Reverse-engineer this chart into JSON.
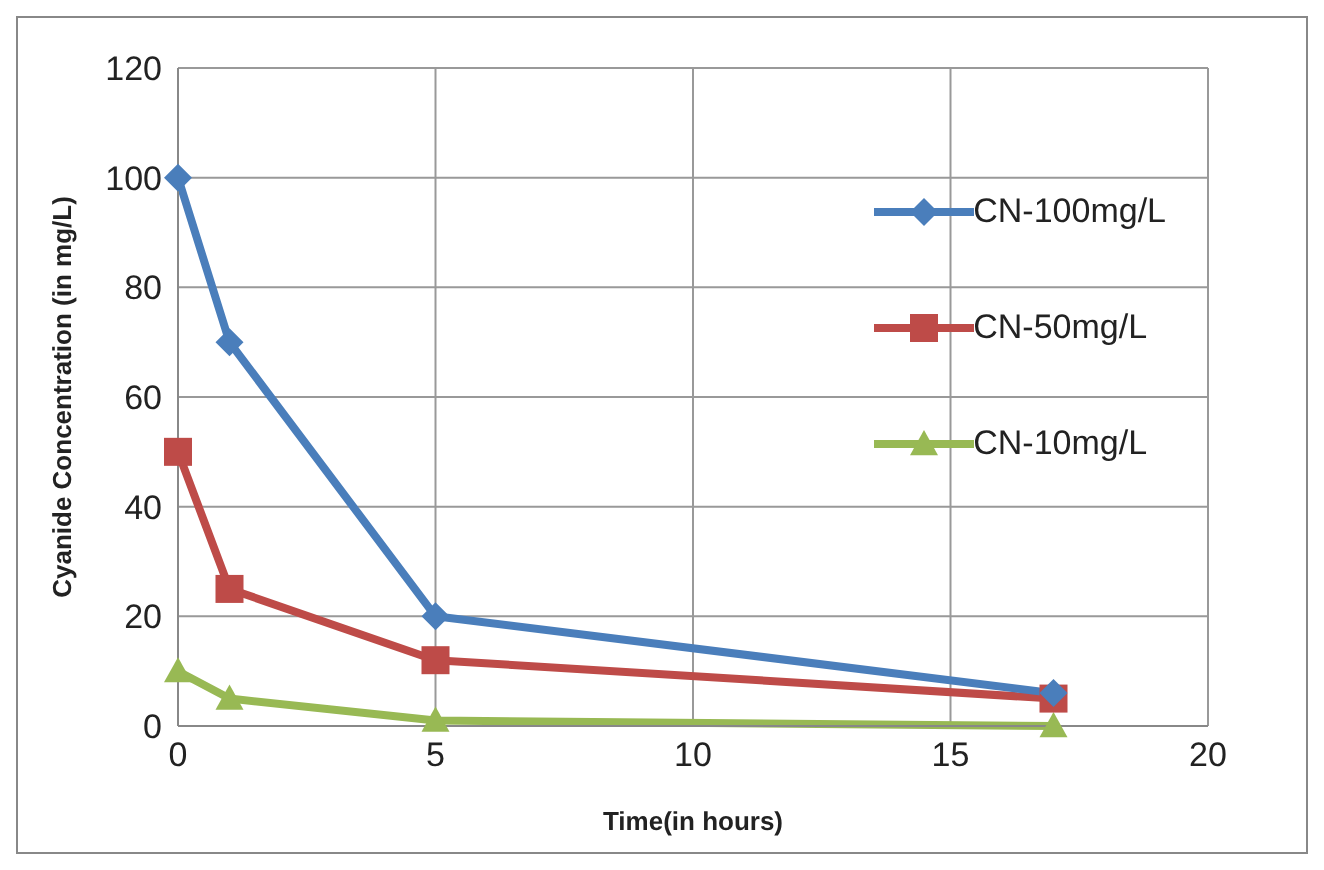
{
  "chart_data": {
    "type": "line",
    "xlabel": "Time(in hours)",
    "ylabel": "Cyanide Concentration (in mg/L)",
    "x": [
      0,
      1,
      5,
      17
    ],
    "xlim": [
      0,
      20
    ],
    "xticks": [
      0,
      5,
      10,
      15,
      20
    ],
    "ylim": [
      0,
      120
    ],
    "yticks": [
      0,
      20,
      40,
      60,
      80,
      100,
      120
    ],
    "grid": true,
    "legend": "top right",
    "series": [
      {
        "name": "CN-100mg/L",
        "color": "#4a7ebb",
        "marker": "diamond",
        "values": [
          100,
          70,
          20,
          6
        ]
      },
      {
        "name": "CN-50mg/L",
        "color": "#be4b48",
        "marker": "square",
        "values": [
          50,
          25,
          12,
          5
        ]
      },
      {
        "name": "CN-10mg/L",
        "color": "#98b954",
        "marker": "triangle",
        "values": [
          10,
          5,
          1,
          0
        ]
      }
    ]
  }
}
